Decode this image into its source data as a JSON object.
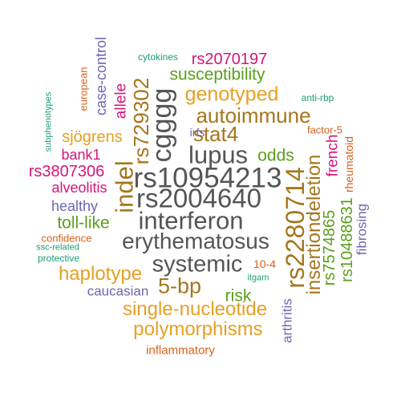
{
  "colors": {
    "gray": "#555555",
    "gold": "#E6A024",
    "green": "#5A9E1C",
    "magenta": "#D6157A",
    "purple": "#6E66B0",
    "orange": "#D9601A",
    "teal": "#1B9E77",
    "brown": "#A5761D"
  },
  "words": [
    {
      "text": "rs10954213",
      "color": "gray"
    },
    {
      "text": "rs2004640",
      "color": "gray"
    },
    {
      "text": "interferon",
      "color": "gray"
    },
    {
      "text": "erythematosus",
      "color": "gray"
    },
    {
      "text": "systemic",
      "color": "gray"
    },
    {
      "text": "lupus",
      "color": "gray"
    },
    {
      "text": "cgggg",
      "color": "gray"
    },
    {
      "text": "rs2280714",
      "color": "brown"
    },
    {
      "text": "autoimmune",
      "color": "brown"
    },
    {
      "text": "stat4",
      "color": "brown"
    },
    {
      "text": "indel",
      "color": "brown"
    },
    {
      "text": "rs729302",
      "color": "brown"
    },
    {
      "text": "5-bp",
      "color": "brown"
    },
    {
      "text": "insertiondeletion",
      "color": "brown"
    },
    {
      "text": "genotyped",
      "color": "gold"
    },
    {
      "text": "haplotype",
      "color": "gold"
    },
    {
      "text": "single-nucleotide",
      "color": "gold"
    },
    {
      "text": "polymorphisms",
      "color": "gold"
    },
    {
      "text": "sjögrens",
      "color": "gold"
    },
    {
      "text": "susceptibility",
      "color": "green"
    },
    {
      "text": "odds",
      "color": "green"
    },
    {
      "text": "toll-like",
      "color": "green"
    },
    {
      "text": "risk",
      "color": "green"
    },
    {
      "text": "rs7574865",
      "color": "green"
    },
    {
      "text": "rs10488631",
      "color": "green"
    },
    {
      "text": "rs2070197",
      "color": "magenta"
    },
    {
      "text": "rs3807306",
      "color": "magenta"
    },
    {
      "text": "bank1",
      "color": "magenta"
    },
    {
      "text": "alveolitis",
      "color": "magenta"
    },
    {
      "text": "allele",
      "color": "magenta"
    },
    {
      "text": "french",
      "color": "magenta"
    },
    {
      "text": "case-control",
      "color": "purple"
    },
    {
      "text": "healthy",
      "color": "purple"
    },
    {
      "text": "caucasian",
      "color": "purple"
    },
    {
      "text": "irfs",
      "color": "purple"
    },
    {
      "text": "arthritis",
      "color": "purple"
    },
    {
      "text": "fibrosing",
      "color": "purple"
    },
    {
      "text": "european",
      "color": "orange"
    },
    {
      "text": "confidence",
      "color": "orange"
    },
    {
      "text": "inflammatory",
      "color": "orange"
    },
    {
      "text": "10-4",
      "color": "orange"
    },
    {
      "text": "factor-5",
      "color": "orange"
    },
    {
      "text": "rheumatoid",
      "color": "orange"
    },
    {
      "text": "cytokines",
      "color": "teal"
    },
    {
      "text": "anti-rbp",
      "color": "teal"
    },
    {
      "text": "subphenotypes",
      "color": "teal"
    },
    {
      "text": "ssc-related",
      "color": "teal"
    },
    {
      "text": "protective",
      "color": "teal"
    },
    {
      "text": "itgam",
      "color": "teal"
    }
  ]
}
